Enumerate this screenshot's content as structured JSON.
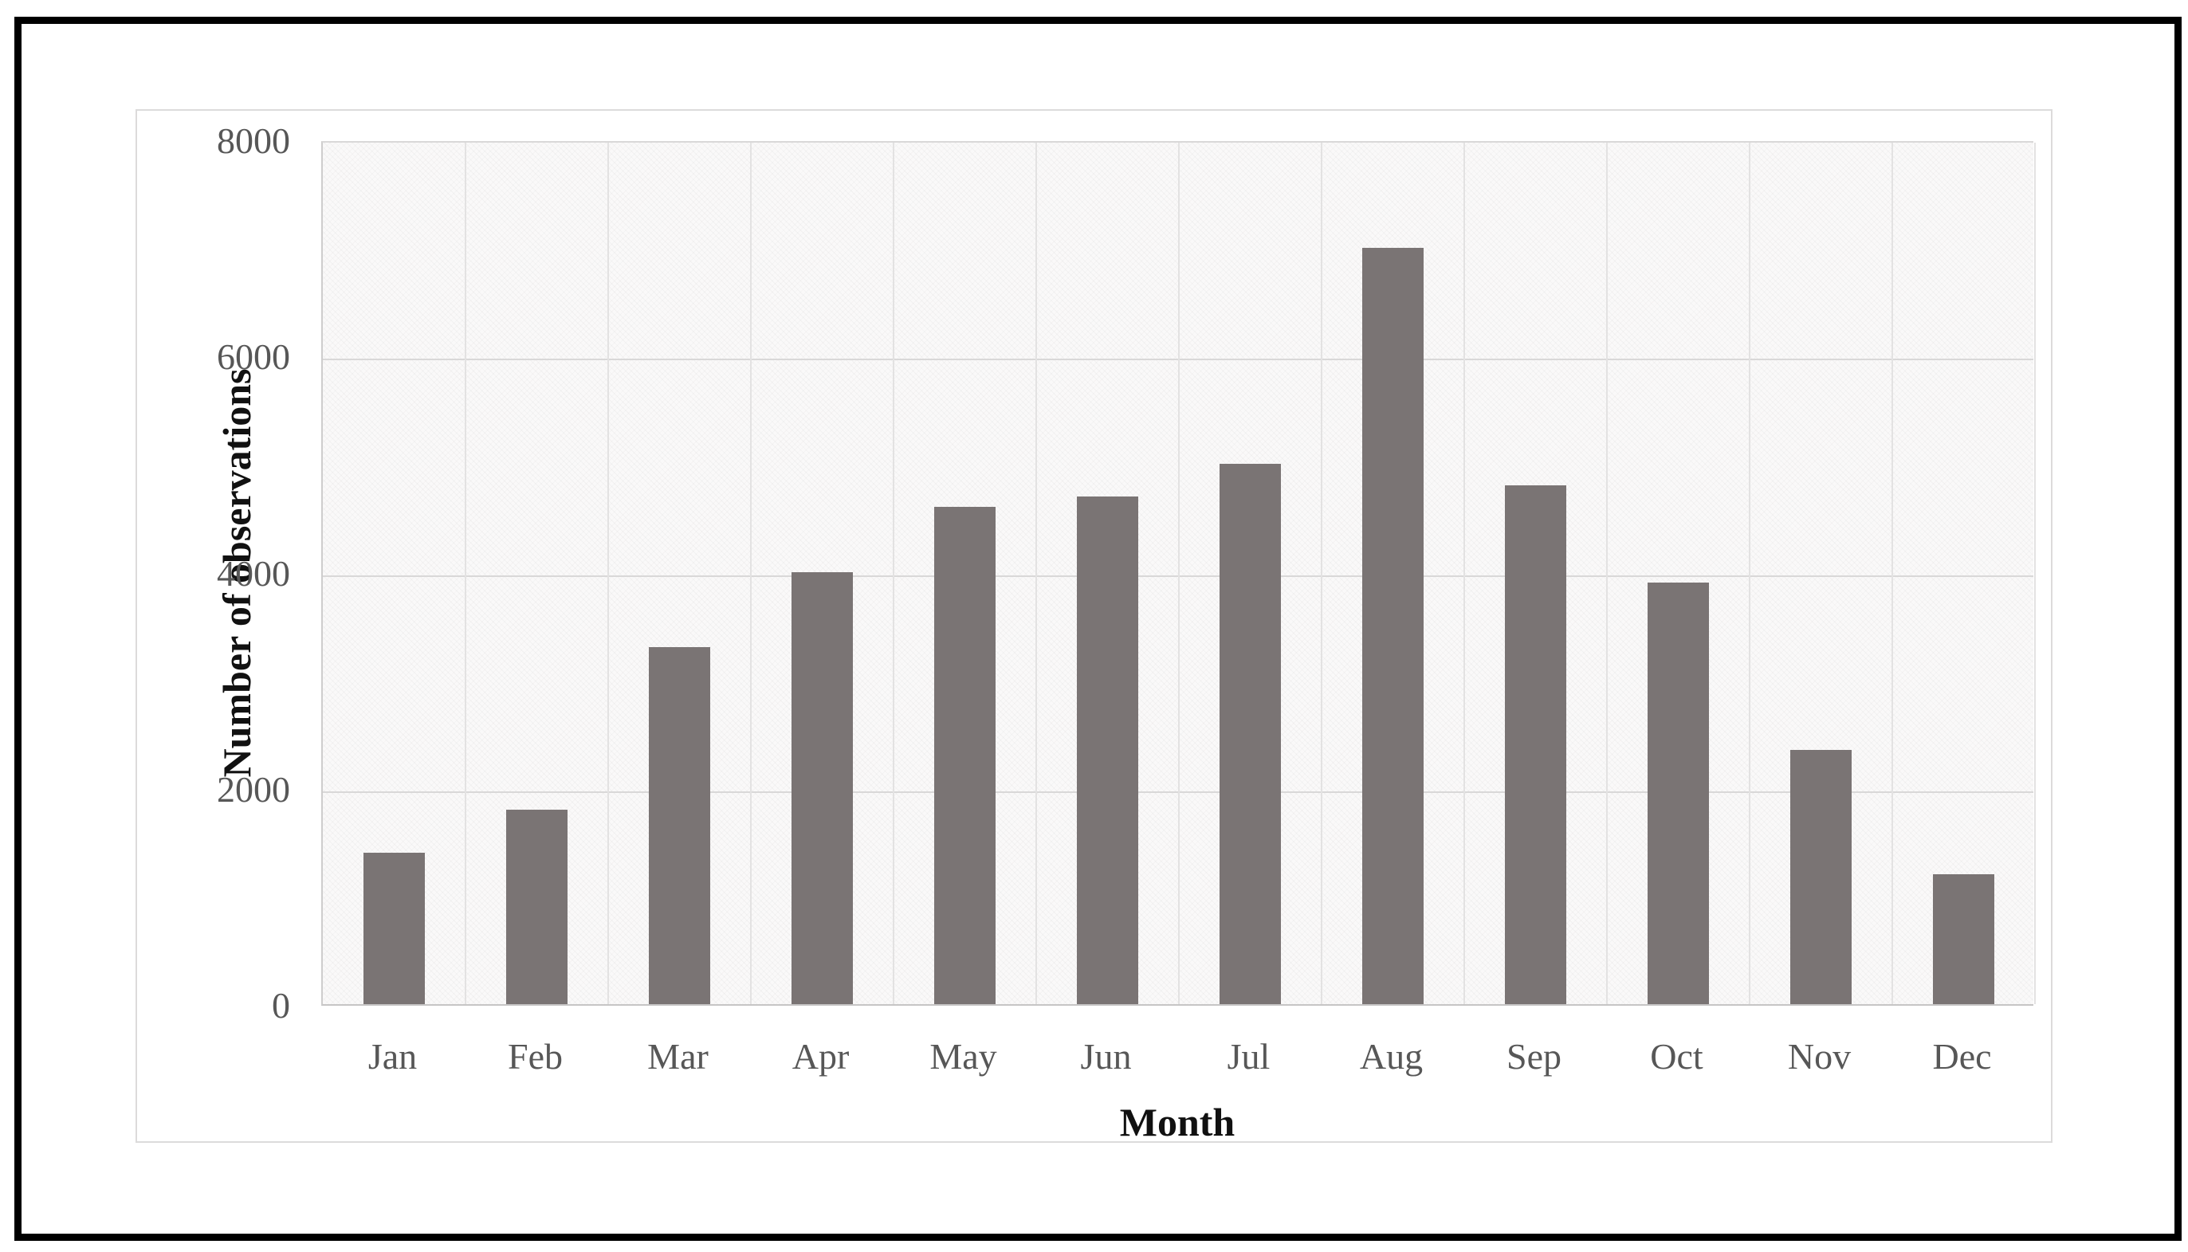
{
  "figure": {
    "frame_color": "#000000",
    "background": "#ffffff",
    "panel_border_color": "#dcdbdb",
    "plot_background": "#faf9f9",
    "gridline_color": "#d9d8d8",
    "tick_label_color": "#575757",
    "title_color": "#111111"
  },
  "chart_data": {
    "type": "bar",
    "title": "",
    "xlabel": "Month",
    "ylabel": "Number of observations",
    "categories": [
      "Jan",
      "Feb",
      "Mar",
      "Apr",
      "May",
      "Jun",
      "Jul",
      "Aug",
      "Sep",
      "Oct",
      "Nov",
      "Dec"
    ],
    "values": [
      1400,
      1800,
      3300,
      4000,
      4600,
      4700,
      5000,
      7000,
      4800,
      3900,
      2350,
      1200
    ],
    "series": [
      {
        "name": "Number of observations",
        "values": [
          1400,
          1800,
          3300,
          4000,
          4600,
          4700,
          5000,
          7000,
          4800,
          3900,
          2350,
          1200
        ]
      }
    ],
    "ylim": [
      0,
      8000
    ],
    "yticks": [
      0,
      2000,
      4000,
      6000,
      8000
    ],
    "bar_color": "#7a7474",
    "grid": "horizontal-major-and-vertical-category",
    "legend": "none"
  }
}
